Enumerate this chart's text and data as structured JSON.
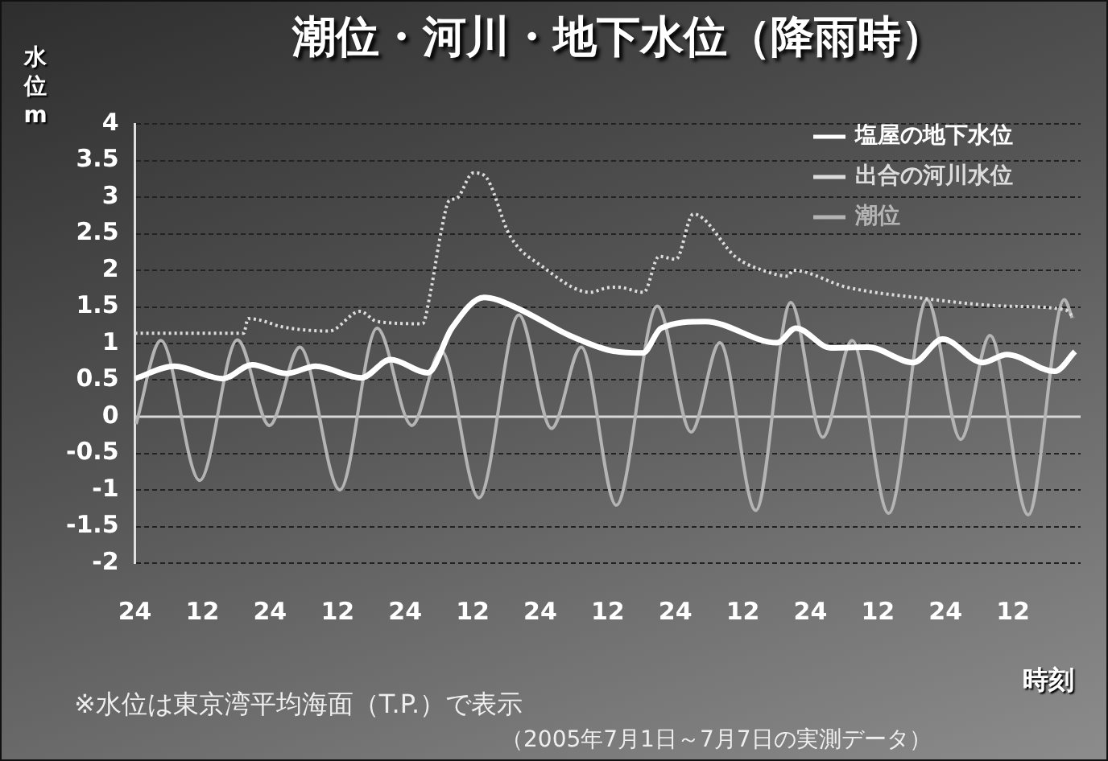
{
  "chart_data": {
    "type": "line",
    "title": "潮位・河川・地下水位（降雨時）",
    "ylabel": "水位 m",
    "xlabel": "時刻",
    "annotations": [
      "※水位は東京湾平均海面（T.P.）で表示",
      "（2005年7月1日～7月7日の実測データ）"
    ],
    "xlim": [
      "2005-07-01T00:00",
      "2005-07-08T00:00"
    ],
    "xticks": [
      {
        "value": "2005-07-01T00:00",
        "label": "24"
      },
      {
        "value": "2005-07-01T12:00",
        "label": "12"
      },
      {
        "value": "2005-07-02T00:00",
        "label": "24"
      },
      {
        "value": "2005-07-02T12:00",
        "label": "12"
      },
      {
        "value": "2005-07-03T00:00",
        "label": "24"
      },
      {
        "value": "2005-07-03T12:00",
        "label": "12"
      },
      {
        "value": "2005-07-04T00:00",
        "label": "24"
      },
      {
        "value": "2005-07-04T12:00",
        "label": "12"
      },
      {
        "value": "2005-07-05T00:00",
        "label": "24"
      },
      {
        "value": "2005-07-05T12:00",
        "label": "12"
      },
      {
        "value": "2005-07-06T00:00",
        "label": "24"
      },
      {
        "value": "2005-07-06T12:00",
        "label": "12"
      },
      {
        "value": "2005-07-07T00:00",
        "label": "24"
      },
      {
        "value": "2005-07-07T12:00",
        "label": "12"
      }
    ],
    "ylim": [
      -2,
      4
    ],
    "yticks": [
      -2,
      -1.5,
      -1,
      -0.5,
      0,
      0.5,
      1,
      1.5,
      2,
      2.5,
      3,
      3.5,
      4
    ],
    "grid": "y",
    "legend": "top right",
    "ref_lines": [
      {
        "axis": "y",
        "value": 0,
        "color": "#d8d8d8"
      }
    ],
    "series": [
      {
        "name": "塩屋の地下水位",
        "color": "#ffffff",
        "x": [
          "2005-07-01T00:00",
          "2005-07-01T07:00",
          "2005-07-01T15:36",
          "2005-07-01T20:48",
          "2005-07-02T02:54",
          "2005-07-02T08:06",
          "2005-07-02T16:12",
          "2005-07-02T21:24",
          "2005-07-03T04:00",
          "2005-07-03T08:18",
          "2005-07-03T14:00",
          "2005-07-03T19:42",
          "2005-07-04T05:12",
          "2005-07-04T12:42",
          "2005-07-04T18:12",
          "2005-07-04T21:30",
          "2005-07-05T05:18",
          "2005-07-05T18:06",
          "2005-07-05T21:24",
          "2005-07-06T03:36",
          "2005-07-06T10:12",
          "2005-07-06T18:18",
          "2005-07-06T23:30",
          "2005-07-07T06:36",
          "2005-07-07T10:54",
          "2005-07-07T19:24",
          "2005-07-07T23:00"
        ],
        "values": [
          0.52,
          0.69,
          0.52,
          0.71,
          0.59,
          0.69,
          0.53,
          0.78,
          0.6,
          1.21,
          1.63,
          1.49,
          1.11,
          0.9,
          0.87,
          1.21,
          1.3,
          1.01,
          1.21,
          0.94,
          0.95,
          0.74,
          1.06,
          0.74,
          0.85,
          0.62,
          0.89
        ]
      },
      {
        "name": "出合の河川水位",
        "color": "#dcdcdc",
        "line_style": "dotted",
        "x": [
          "2005-07-01T00:00",
          "2005-07-01T19:18",
          "2005-07-01T20:06",
          "2005-07-01T22:12",
          "2005-07-02T02:00",
          "2005-07-02T10:30",
          "2005-07-02T16:00",
          "2005-07-02T19:00",
          "2005-07-03T03:06",
          "2005-07-03T04:30",
          "2005-07-03T06:24",
          "2005-07-03T07:48",
          "2005-07-03T09:06",
          "2005-07-03T12:06",
          "2005-07-03T14:00",
          "2005-07-03T18:42",
          "2005-07-04T00:24",
          "2005-07-04T08:54",
          "2005-07-04T11:48",
          "2005-07-04T13:42",
          "2005-07-04T18:24",
          "2005-07-04T21:06",
          "2005-07-05T00:06",
          "2005-07-05T03:12",
          "2005-07-05T04:54",
          "2005-07-05T10:36",
          "2005-07-05T16:18",
          "2005-07-05T20:00",
          "2005-07-05T20:54",
          "2005-07-06T06:24",
          "2005-07-06T19:42",
          "2005-07-07T10:54",
          "2005-07-07T21:18",
          "2005-07-07T22:48"
        ],
        "values": [
          1.14,
          1.14,
          1.34,
          1.32,
          1.23,
          1.17,
          1.44,
          1.3,
          1.27,
          1.7,
          2.53,
          2.95,
          2.98,
          3.33,
          3.3,
          2.46,
          2.05,
          1.7,
          1.76,
          1.77,
          1.7,
          2.19,
          2.15,
          2.77,
          2.71,
          2.19,
          1.98,
          1.92,
          2,
          1.77,
          1.62,
          1.51,
          1.46,
          1.35
        ]
      },
      {
        "name": "潮位",
        "color": "#b4b4b4",
        "x": [
          "2005-07-01T00:12",
          "2005-07-01T04:36",
          "2005-07-01T11:30",
          "2005-07-01T18:12",
          "2005-07-01T23:54",
          "2005-07-02T05:18",
          "2005-07-02T12:24",
          "2005-07-02T19:00",
          "2005-07-03T01:12",
          "2005-07-03T06:24",
          "2005-07-03T13:06",
          "2005-07-03T20:12",
          "2005-07-04T02:00",
          "2005-07-04T07:18",
          "2005-07-04T13:30",
          "2005-07-04T20:48",
          "2005-07-05T02:48",
          "2005-07-05T07:54",
          "2005-07-05T14:18",
          "2005-07-05T20:30",
          "2005-07-06T02:12",
          "2005-07-06T07:24",
          "2005-07-06T13:54",
          "2005-07-06T20:42",
          "2005-07-07T02:42",
          "2005-07-07T07:54",
          "2005-07-07T14:42",
          "2005-07-07T21:06",
          "2005-07-07T22:30"
        ],
        "values": [
          -0.1,
          1.04,
          -0.87,
          1.05,
          -0.12,
          0.95,
          -1,
          1.21,
          -0.12,
          0.9,
          -1.11,
          1.39,
          -0.16,
          0.95,
          -1.21,
          1.51,
          -0.21,
          1.01,
          -1.28,
          1.56,
          -0.28,
          1.04,
          -1.32,
          1.6,
          -0.31,
          1.11,
          -1.34,
          1.6,
          1.35
        ]
      }
    ]
  }
}
